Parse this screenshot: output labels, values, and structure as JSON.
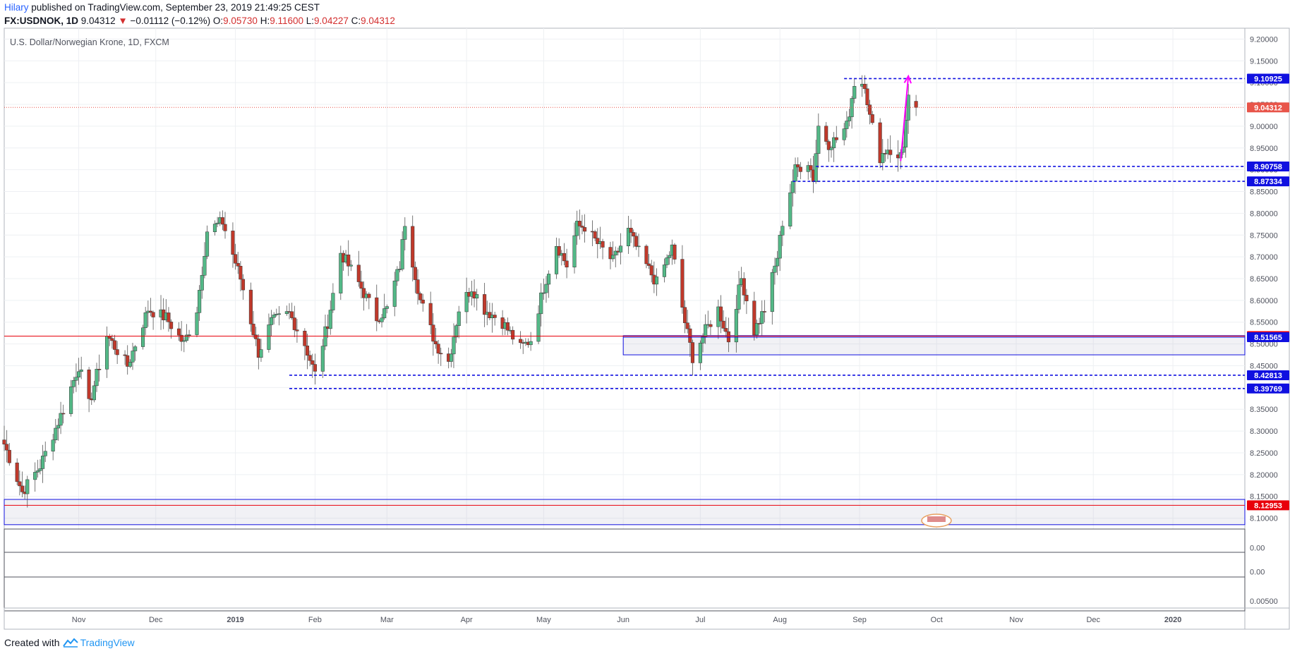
{
  "header": {
    "user": "Hilary",
    "published": "published on TradingView.com, September 23, 2019 21:49:25 CEST",
    "symbol": "FX:USDNOK, 1D",
    "last": "9.04312",
    "change_arrow": "▼",
    "change": "−0.01112 (−0.12%)",
    "o_label": "O:",
    "o": "9.05730",
    "h_label": "H:",
    "h": "9.11600",
    "l_label": "L:",
    "l": "9.04227",
    "c_label": "C:",
    "c": "9.04312"
  },
  "colors": {
    "up": "#53b987",
    "down": "#c0392b",
    "level_blue": "#1010e0",
    "level_red": "#e8000a",
    "arrow": "#ff00ff",
    "price_tag": "#e8554a"
  },
  "chart_data": {
    "type": "candlestick",
    "title": "U.S. Dollar/Norwegian Krone, 1D, FXCM",
    "y_ticks": [
      "9.20000",
      "9.15000",
      "9.10000",
      "9.05000",
      "9.00000",
      "8.95000",
      "8.90000",
      "8.85000",
      "8.80000",
      "8.75000",
      "8.70000",
      "8.65000",
      "8.60000",
      "8.55000",
      "8.50000",
      "8.45000",
      "8.40000",
      "8.35000",
      "8.30000",
      "8.25000",
      "8.20000",
      "8.15000",
      "8.10000"
    ],
    "ylim": [
      8.075,
      9.225
    ],
    "x_ticks": [
      "Nov",
      "Dec",
      "2019",
      "Feb",
      "Mar",
      "Apr",
      "May",
      "Jun",
      "Jul",
      "Aug",
      "Sep",
      "Oct",
      "Nov",
      "Dec",
      "2020"
    ],
    "x_range": [
      "2018-10-03",
      "2020-01-29"
    ],
    "anchors": [
      {
        "date": "2018-10-03",
        "close": 8.27
      },
      {
        "date": "2018-10-10",
        "close": 8.16
      },
      {
        "date": "2018-10-17",
        "close": 8.22
      },
      {
        "date": "2018-10-26",
        "close": 8.35
      },
      {
        "date": "2018-11-01",
        "close": 8.45
      },
      {
        "date": "2018-11-05",
        "close": 8.36
      },
      {
        "date": "2018-11-12",
        "close": 8.52
      },
      {
        "date": "2018-11-20",
        "close": 8.45
      },
      {
        "date": "2018-11-28",
        "close": 8.58
      },
      {
        "date": "2018-12-05",
        "close": 8.56
      },
      {
        "date": "2018-12-12",
        "close": 8.5
      },
      {
        "date": "2018-12-17",
        "close": 8.58
      },
      {
        "date": "2018-12-21",
        "close": 8.76
      },
      {
        "date": "2018-12-27",
        "close": 8.78
      },
      {
        "date": "2019-01-03",
        "close": 8.65
      },
      {
        "date": "2019-01-10",
        "close": 8.48
      },
      {
        "date": "2019-01-15",
        "close": 8.55
      },
      {
        "date": "2019-01-22",
        "close": 8.57
      },
      {
        "date": "2019-01-28",
        "close": 8.5
      },
      {
        "date": "2019-02-01",
        "close": 8.43
      },
      {
        "date": "2019-02-06",
        "close": 8.55
      },
      {
        "date": "2019-02-11",
        "close": 8.71
      },
      {
        "date": "2019-02-18",
        "close": 8.64
      },
      {
        "date": "2019-02-25",
        "close": 8.56
      },
      {
        "date": "2019-03-01",
        "close": 8.58
      },
      {
        "date": "2019-03-06",
        "close": 8.68
      },
      {
        "date": "2019-03-08",
        "close": 8.78
      },
      {
        "date": "2019-03-14",
        "close": 8.6
      },
      {
        "date": "2019-03-20",
        "close": 8.5
      },
      {
        "date": "2019-03-25",
        "close": 8.46
      },
      {
        "date": "2019-03-29",
        "close": 8.58
      },
      {
        "date": "2019-04-03",
        "close": 8.63
      },
      {
        "date": "2019-04-08",
        "close": 8.58
      },
      {
        "date": "2019-04-15",
        "close": 8.55
      },
      {
        "date": "2019-04-22",
        "close": 8.49
      },
      {
        "date": "2019-04-26",
        "close": 8.51
      },
      {
        "date": "2019-05-01",
        "close": 8.63
      },
      {
        "date": "2019-05-06",
        "close": 8.73
      },
      {
        "date": "2019-05-10",
        "close": 8.68
      },
      {
        "date": "2019-05-14",
        "close": 8.77
      },
      {
        "date": "2019-05-17",
        "close": 8.77
      },
      {
        "date": "2019-05-22",
        "close": 8.73
      },
      {
        "date": "2019-05-28",
        "close": 8.69
      },
      {
        "date": "2019-06-03",
        "close": 8.76
      },
      {
        "date": "2019-06-07",
        "close": 8.71
      },
      {
        "date": "2019-06-14",
        "close": 8.64
      },
      {
        "date": "2019-06-20",
        "close": 8.72
      },
      {
        "date": "2019-06-25",
        "close": 8.55
      },
      {
        "date": "2019-06-28",
        "close": 8.47
      },
      {
        "date": "2019-07-03",
        "close": 8.53
      },
      {
        "date": "2019-07-08",
        "close": 8.58
      },
      {
        "date": "2019-07-12",
        "close": 8.51
      },
      {
        "date": "2019-07-17",
        "close": 8.65
      },
      {
        "date": "2019-07-22",
        "close": 8.53
      },
      {
        "date": "2019-07-26",
        "close": 8.58
      },
      {
        "date": "2019-07-31",
        "close": 8.7
      },
      {
        "date": "2019-08-02",
        "close": 8.78
      },
      {
        "date": "2019-08-07",
        "close": 8.9
      },
      {
        "date": "2019-08-12",
        "close": 8.92
      },
      {
        "date": "2019-08-14",
        "close": 8.88
      },
      {
        "date": "2019-08-16",
        "close": 9.0
      },
      {
        "date": "2019-08-20",
        "close": 8.96
      },
      {
        "date": "2019-08-23",
        "close": 8.97
      },
      {
        "date": "2019-08-27",
        "close": 9.0
      },
      {
        "date": "2019-08-30",
        "close": 9.1
      },
      {
        "date": "2019-09-03",
        "close": 9.1
      },
      {
        "date": "2019-09-05",
        "close": 9.02
      },
      {
        "date": "2019-09-09",
        "close": 8.93
      },
      {
        "date": "2019-09-12",
        "close": 8.95
      },
      {
        "date": "2019-09-16",
        "close": 8.92
      },
      {
        "date": "2019-09-18",
        "close": 8.96
      },
      {
        "date": "2019-09-20",
        "close": 9.06
      },
      {
        "date": "2019-09-23",
        "close": 9.04312
      }
    ],
    "levels": [
      {
        "value": 9.10925,
        "label": "9.10925",
        "color": "blue",
        "style": "dashed",
        "from": "2019-08-26"
      },
      {
        "value": 9.04312,
        "label": "9.04312",
        "color": "price",
        "style": "dotted",
        "from": "2018-10-03"
      },
      {
        "value": 8.90758,
        "label": "8.90758",
        "color": "blue",
        "style": "dashed",
        "from": "2019-08-15"
      },
      {
        "value": 8.87334,
        "label": "8.87334",
        "color": "blue",
        "style": "dashed",
        "from": "2019-08-06"
      },
      {
        "value": 8.51802,
        "label": "8.51802",
        "color": "red",
        "style": "solid",
        "from": "2018-10-03"
      },
      {
        "value": 8.51565,
        "label": "8.51565",
        "color": "blue",
        "style": "solid",
        "from": "2019-06-01"
      },
      {
        "value": 8.42813,
        "label": "8.42813",
        "color": "blue",
        "style": "dashed",
        "from": "2019-01-22"
      },
      {
        "value": 8.39769,
        "label": "8.39769",
        "color": "blue",
        "style": "dashed",
        "from": "2019-01-22"
      },
      {
        "value": 8.12953,
        "label": "8.12953",
        "color": "red",
        "style": "solid",
        "from": "2018-10-03"
      }
    ],
    "zones": [
      {
        "from": "2019-06-01",
        "top": 8.519,
        "bottom": 8.475
      },
      {
        "from": "2018-10-03",
        "top": 8.143,
        "bottom": 8.085
      }
    ],
    "arrow": {
      "from_date": "2019-09-17",
      "from_value": 8.92,
      "to_date": "2019-09-20",
      "to_value": 9.115
    },
    "lower_panes": [
      {
        "label": "0.00"
      },
      {
        "label": "0.00"
      },
      {
        "label": "0.00500"
      }
    ]
  },
  "footer": {
    "created": "Created with",
    "brand": "TradingView"
  }
}
